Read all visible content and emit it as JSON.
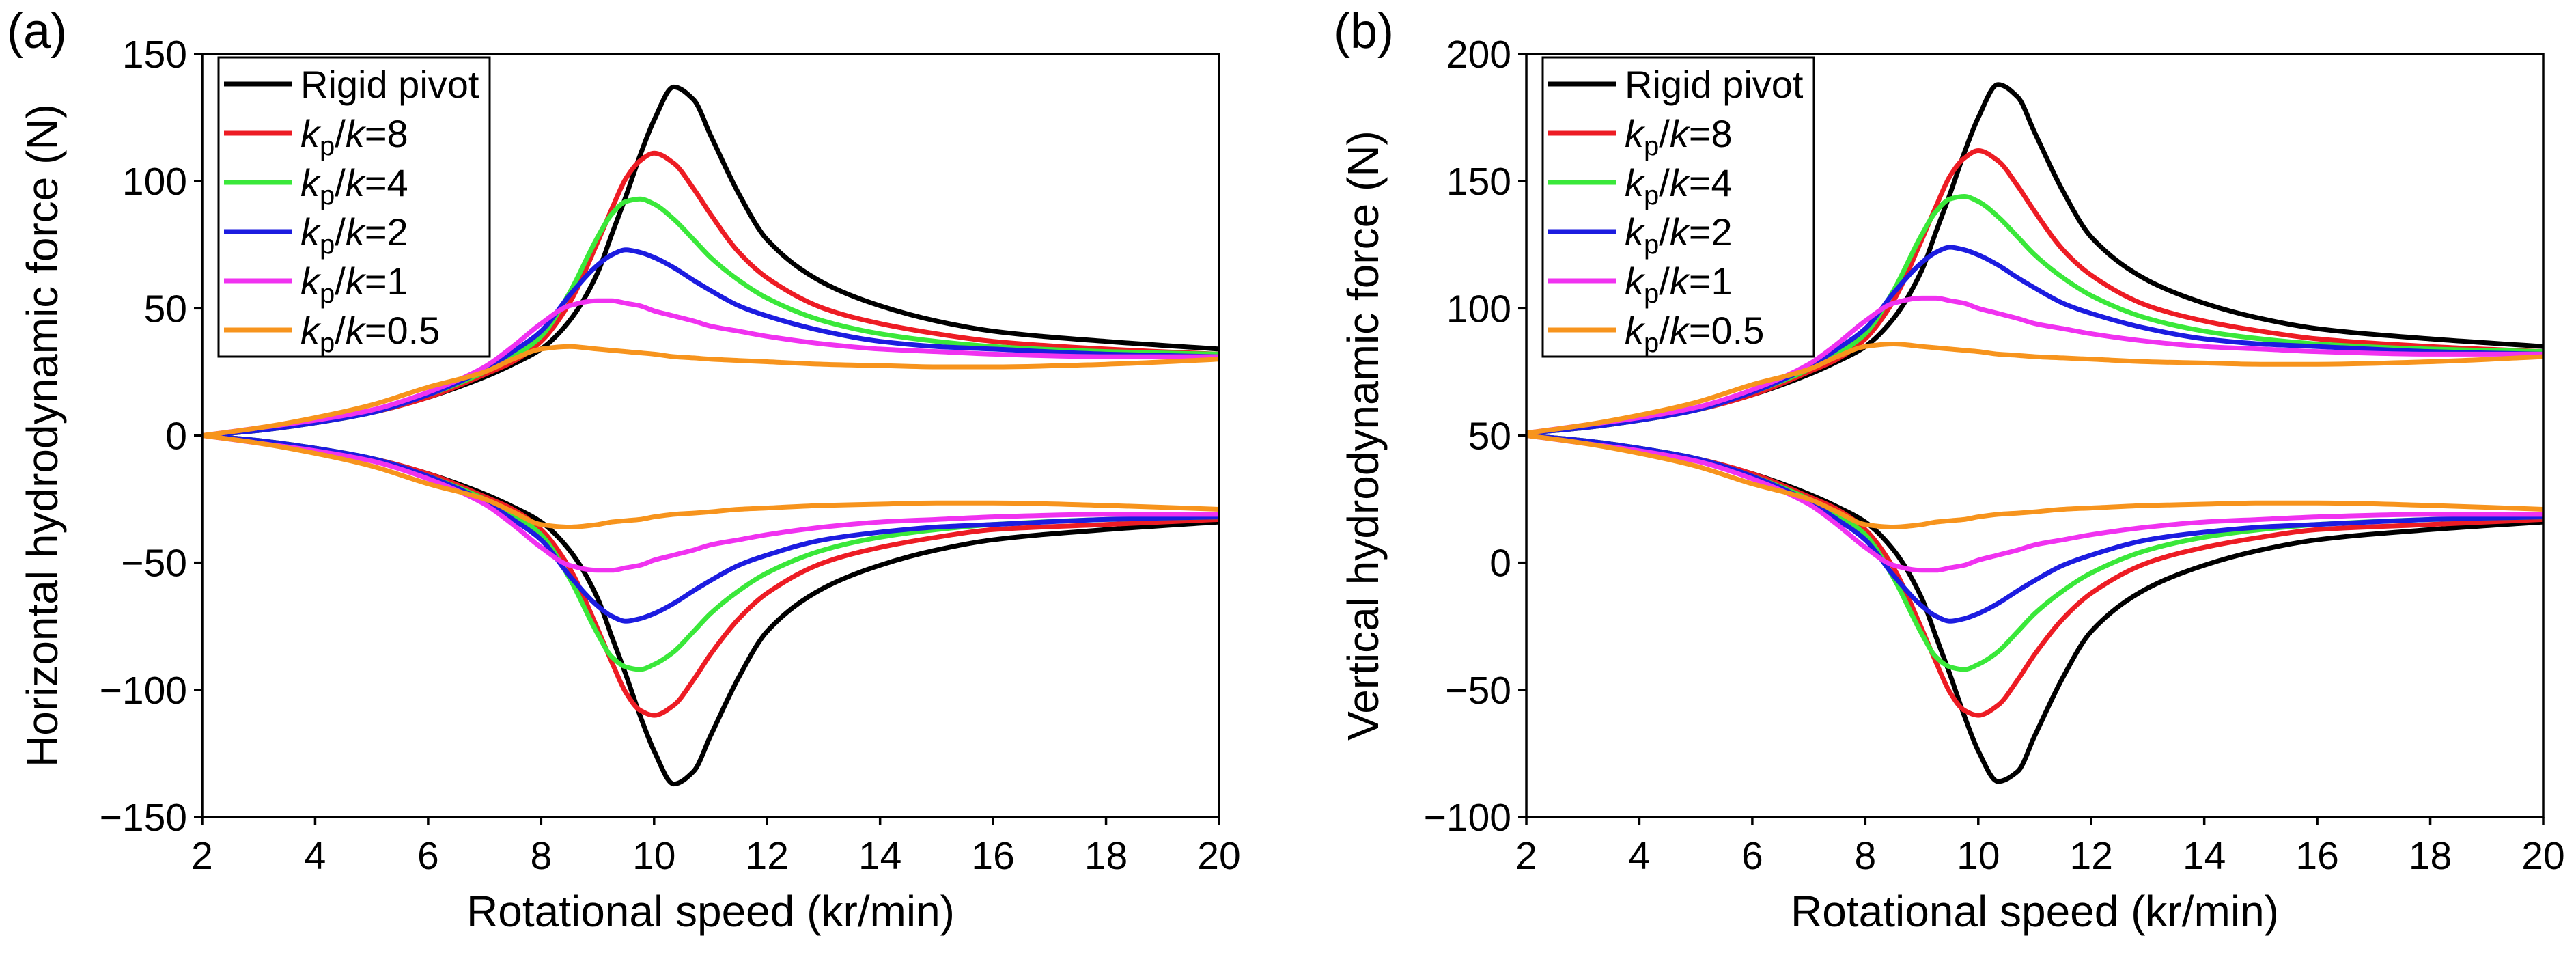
{
  "chart_data": [
    {
      "type": "line",
      "panel_label": "(a)",
      "xlabel": "Rotational speed (kr/min)",
      "ylabel": "Horizontal hydrodynamic force (N)",
      "xlim": [
        2,
        20
      ],
      "ylim": [
        -150,
        150
      ],
      "xticks": [
        2,
        4,
        6,
        8,
        10,
        12,
        14,
        16,
        18,
        20
      ],
      "xtick_labels": [
        "2",
        "4",
        "6",
        "8",
        "10",
        "12",
        "14",
        "16",
        "18",
        "20"
      ],
      "yticks": [
        -150,
        -100,
        -50,
        0,
        50,
        100,
        150
      ],
      "ytick_labels": [
        "−150",
        "−100",
        "−50",
        "0",
        "50",
        "100",
        "150"
      ],
      "grid": false,
      "legend_position": "top-left",
      "x": [
        2,
        3,
        4,
        5,
        6,
        7,
        7.5,
        8,
        8.5,
        9,
        9.25,
        9.5,
        9.75,
        10,
        10.35,
        10.7,
        11,
        11.5,
        12,
        13,
        14,
        15,
        16,
        18,
        20
      ],
      "series": [
        {
          "label": {
            "text": "Rigid pivot"
          },
          "color": "#000000",
          "upper": [
            0,
            2,
            5,
            9,
            15,
            23,
            28,
            34,
            45,
            64,
            79,
            94,
            110,
            124,
            137,
            132,
            118,
            95,
            77,
            60,
            51,
            45,
            41,
            37,
            34
          ],
          "lower": [
            0,
            -2,
            -5,
            -9,
            -15,
            -23,
            -28,
            -34,
            -45,
            -64,
            -79,
            -94,
            -110,
            -124,
            -137,
            -132,
            -118,
            -95,
            -77,
            -60,
            -51,
            -45,
            -41,
            -37,
            -34
          ]
        },
        {
          "label": {
            "var": "k",
            "sub": "p",
            "sep": "/",
            "var2": "k",
            "tail": "=8"
          },
          "color": "#ed1c24",
          "upper": [
            0,
            2,
            5,
            9,
            15,
            24,
            29,
            37,
            52,
            76,
            89,
            101,
            108,
            111,
            107,
            97,
            87,
            72,
            62,
            50,
            44,
            40,
            37,
            34,
            32
          ],
          "lower": [
            0,
            -2,
            -5,
            -9,
            -15,
            -24,
            -29,
            -37,
            -52,
            -76,
            -89,
            -101,
            -108,
            -110,
            -106,
            -96,
            -86,
            -72,
            -62,
            -50,
            -44,
            -40,
            -37,
            -35,
            -33
          ]
        },
        {
          "label": {
            "var": "k",
            "sub": "p",
            "sep": "/",
            "var2": "k",
            "tail": "=4"
          },
          "color": "#3ae83a",
          "upper": [
            0,
            2,
            5,
            9,
            16,
            25,
            31,
            39,
            56,
            78,
            87,
            92,
            93,
            91,
            85,
            77,
            70,
            61,
            54,
            45,
            40,
            37,
            35,
            33,
            32
          ],
          "lower": [
            0,
            -2,
            -5,
            -9,
            -16,
            -25,
            -31,
            -39,
            -56,
            -78,
            -87,
            -91,
            -92,
            -90,
            -85,
            -77,
            -70,
            -61,
            -54,
            -45,
            -40,
            -37,
            -35,
            -33,
            -32
          ]
        },
        {
          "label": {
            "var": "k",
            "sub": "p",
            "sep": "/",
            "var2": "k",
            "tail": "=2"
          },
          "color": "#1c1ce0",
          "upper": [
            0,
            2,
            5,
            9,
            16,
            26,
            33,
            41,
            55,
            67,
            71,
            73,
            72,
            70,
            66,
            61,
            57,
            51,
            47,
            41,
            37,
            35,
            34,
            32,
            31
          ],
          "lower": [
            0,
            -2,
            -5,
            -9,
            -16,
            -26,
            -33,
            -41,
            -55,
            -67,
            -71,
            -73,
            -72,
            -70,
            -66,
            -61,
            -57,
            -51,
            -47,
            -41,
            -38,
            -36,
            -35,
            -33,
            -32
          ]
        },
        {
          "label": {
            "var": "k",
            "sub": "p",
            "sep": "/",
            "var2": "k",
            "tail": "=1"
          },
          "color": "#f032f0",
          "upper": [
            0,
            3,
            6,
            10,
            17,
            27,
            35,
            44,
            51,
            53,
            53,
            52,
            51,
            49,
            47,
            45,
            43,
            41,
            39,
            36,
            34,
            33,
            32,
            31,
            31
          ],
          "lower": [
            0,
            -3,
            -6,
            -10,
            -17,
            -27,
            -35,
            -44,
            -51,
            -53,
            -53,
            -52,
            -51,
            -49,
            -47,
            -45,
            -43,
            -41,
            -39,
            -36,
            -34,
            -33,
            -32,
            -31,
            -31
          ]
        },
        {
          "label": {
            "var": "k",
            "sub": "p",
            "sep": "/",
            "var2": "k",
            "tail": "=0.5"
          },
          "color": "#f7941d",
          "upper": [
            0,
            3,
            7,
            12,
            19,
            25,
            30,
            34,
            35,
            34,
            33.5,
            33,
            32.5,
            32,
            31,
            30.5,
            30,
            29.5,
            29,
            28,
            27.5,
            27,
            27,
            28,
            30
          ],
          "lower": [
            0,
            -3,
            -7,
            -12,
            -19,
            -25,
            -30,
            -35,
            -36,
            -35,
            -34,
            -33.5,
            -33,
            -32,
            -31,
            -30.5,
            -30,
            -29,
            -28.5,
            -27.5,
            -27,
            -26.5,
            -26.5,
            -27.5,
            -29
          ]
        }
      ]
    },
    {
      "type": "line",
      "panel_label": "(b)",
      "xlabel": "Rotational speed (kr/min)",
      "ylabel": "Vertical hydrodynamic force (N)",
      "xlim": [
        2,
        20
      ],
      "ylim": [
        -100,
        200
      ],
      "xticks": [
        2,
        4,
        6,
        8,
        10,
        12,
        14,
        16,
        18,
        20
      ],
      "xtick_labels": [
        "2",
        "4",
        "6",
        "8",
        "10",
        "12",
        "14",
        "16",
        "18",
        "20"
      ],
      "yticks": [
        -100,
        -50,
        0,
        50,
        100,
        150,
        200
      ],
      "ytick_labels": [
        "−100",
        "−50",
        "0",
        "50",
        "100",
        "150",
        "200"
      ],
      "grid": false,
      "legend_position": "top-left",
      "x": [
        2,
        3,
        4,
        5,
        6,
        7,
        7.5,
        8,
        8.5,
        9,
        9.25,
        9.5,
        9.75,
        10,
        10.35,
        10.7,
        11,
        11.5,
        12,
        13,
        14,
        15,
        16,
        18,
        20
      ],
      "series": [
        {
          "label": {
            "text": "Rigid pivot"
          },
          "color": "#000000",
          "upper": [
            51,
            53,
            56,
            60,
            66,
            74,
            79,
            85,
            96,
            115,
            130,
            145,
            161,
            175,
            188,
            183,
            169,
            146,
            128,
            111,
            102,
            96,
            92,
            88,
            85
          ],
          "lower": [
            50,
            48,
            45,
            41,
            35,
            27,
            22,
            16,
            5,
            -14,
            -29,
            -44,
            -60,
            -74,
            -86,
            -82,
            -68,
            -45,
            -27,
            -10,
            -1,
            5,
            9,
            13,
            16
          ]
        },
        {
          "label": {
            "var": "k",
            "sub": "p",
            "sep": "/",
            "var2": "k",
            "tail": "=8"
          },
          "color": "#ed1c24",
          "upper": [
            51,
            53,
            56,
            60,
            66,
            75,
            80,
            88,
            103,
            127,
            140,
            152,
            159,
            162,
            158,
            148,
            138,
            123,
            113,
            101,
            95,
            91,
            88,
            85,
            83
          ],
          "lower": [
            50,
            48,
            45,
            41,
            35,
            26,
            21,
            13,
            -2,
            -26,
            -39,
            -51,
            -58,
            -60,
            -56,
            -46,
            -36,
            -22,
            -12,
            0,
            6,
            10,
            13,
            15,
            17
          ]
        },
        {
          "label": {
            "var": "k",
            "sub": "p",
            "sep": "/",
            "var2": "k",
            "tail": "=4"
          },
          "color": "#3ae83a",
          "upper": [
            51,
            53,
            56,
            60,
            67,
            76,
            82,
            90,
            107,
            129,
            138,
            143,
            144,
            142,
            136,
            128,
            121,
            112,
            105,
            96,
            91,
            88,
            86,
            84,
            83
          ],
          "lower": [
            50,
            48,
            45,
            41,
            34,
            25,
            19,
            11,
            -6,
            -28,
            -37,
            -41,
            -42,
            -40,
            -35,
            -27,
            -20,
            -11,
            -4,
            5,
            10,
            13,
            15,
            17,
            18
          ]
        },
        {
          "label": {
            "var": "k",
            "sub": "p",
            "sep": "/",
            "var2": "k",
            "tail": "=2"
          },
          "color": "#1c1ce0",
          "upper": [
            51,
            53,
            56,
            60,
            67,
            77,
            84,
            92,
            106,
            118,
            122,
            124,
            123,
            121,
            117,
            112,
            108,
            102,
            98,
            92,
            88,
            86,
            85,
            83,
            82
          ],
          "lower": [
            50,
            48,
            45,
            41,
            34,
            24,
            17,
            9,
            -5,
            -17,
            -21,
            -23,
            -22,
            -20,
            -16,
            -11,
            -7,
            -1,
            3,
            9,
            12,
            14,
            15,
            17,
            18
          ]
        },
        {
          "label": {
            "var": "k",
            "sub": "p",
            "sep": "/",
            "var2": "k",
            "tail": "=1"
          },
          "color": "#f032f0",
          "upper": [
            51,
            54,
            57,
            61,
            68,
            78,
            86,
            95,
            102,
            104,
            104,
            103,
            102,
            100,
            98,
            96,
            94,
            92,
            90,
            87,
            85,
            84,
            83,
            82,
            82
          ],
          "lower": [
            50,
            47,
            44,
            40,
            33,
            23,
            15,
            6,
            -1,
            -3,
            -3,
            -2,
            -1,
            1,
            3,
            5,
            7,
            9,
            11,
            14,
            16,
            17,
            18,
            19,
            19
          ]
        },
        {
          "label": {
            "var": "k",
            "sub": "p",
            "sep": "/",
            "var2": "k",
            "tail": "=0.5"
          },
          "color": "#f7941d",
          "upper": [
            51,
            54,
            58,
            63,
            70,
            76,
            81,
            85,
            86,
            85,
            84.5,
            84,
            83.5,
            83,
            82,
            81.5,
            81,
            80.5,
            80,
            79,
            78.5,
            78,
            78,
            79,
            81
          ],
          "lower": [
            50,
            47,
            43,
            38,
            31,
            25,
            20,
            15,
            14,
            15,
            16,
            16.5,
            17,
            18,
            19,
            19.5,
            20,
            21,
            21.5,
            22.5,
            23,
            23.5,
            23.5,
            22.5,
            21
          ]
        }
      ]
    }
  ]
}
